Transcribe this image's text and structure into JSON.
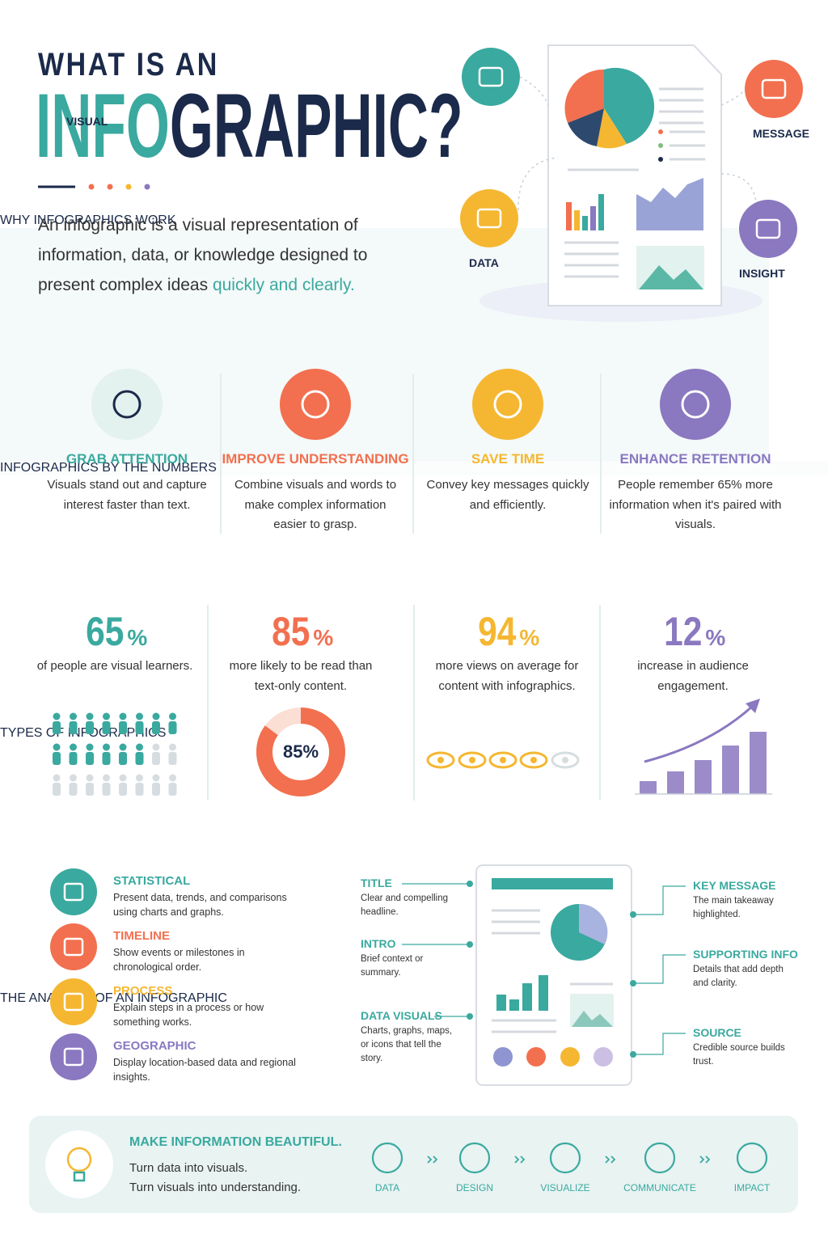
{
  "header": {
    "title_line1": "WHAT IS AN",
    "title_info": "INFO",
    "title_rest": "GRAPHIC?",
    "description": "An infographic is a visual representation of information, data, or knowledge designed to present complex ideas ",
    "description_highlight": "quickly and clearly."
  },
  "hero": {
    "labels": [
      "VISUAL",
      "MESSAGE",
      "DATA",
      "INSIGHT"
    ]
  },
  "why": {
    "title": "WHY INFOGRAPHICS WORK",
    "items": [
      {
        "heading": "GRAB ATTENTION",
        "text": "Visuals stand out and capture interest faster than text."
      },
      {
        "heading": "IMPROVE UNDERSTANDING",
        "text": "Combine visuals and words to make complex information easier to grasp."
      },
      {
        "heading": "SAVE TIME",
        "text": "Convey key messages quickly and efficiently."
      },
      {
        "heading": "ENHANCE RETENTION",
        "text": "People remember 65% more information when it's paired with visuals."
      }
    ]
  },
  "numbers": {
    "title": "INFOGRAPHICS BY THE NUMBERS",
    "stats": [
      {
        "value": 65,
        "unit": "%",
        "text": "of people are visual learners."
      },
      {
        "value": 85,
        "unit": "%",
        "text": "more likely to be read than text-only content."
      },
      {
        "value": 94,
        "unit": "%",
        "text": "more views on average for content with infographics."
      },
      {
        "value": 12,
        "unit": "%",
        "text": "increase in audience engagement."
      }
    ],
    "donut_label": "85%"
  },
  "types": {
    "title": "TYPES OF INFOGRAPHICS",
    "items": [
      {
        "heading": "STATISTICAL",
        "text": "Present data, trends, and comparisons using charts and graphs."
      },
      {
        "heading": "TIMELINE",
        "text": "Show events or milestones in chronological order."
      },
      {
        "heading": "PROCESS",
        "text": "Explain steps in a process or how something works."
      },
      {
        "heading": "GEOGRAPHIC",
        "text": "Display location-based data and regional insights."
      }
    ]
  },
  "anatomy": {
    "title": "THE ANATOMY OF AN INFOGRAPHIC",
    "left": [
      {
        "heading": "TITLE",
        "text": "Clear and compelling headline."
      },
      {
        "heading": "INTRO",
        "text": "Brief context or summary."
      },
      {
        "heading": "DATA VISUALS",
        "text": "Charts, graphs, maps, or icons that tell the story."
      }
    ],
    "right": [
      {
        "heading": "KEY MESSAGE",
        "text": "The main takeaway highlighted."
      },
      {
        "heading": "SUPPORTING INFO",
        "text": "Details that add depth and clarity."
      },
      {
        "heading": "SOURCE",
        "text": "Credible source builds trust."
      }
    ]
  },
  "footer": {
    "heading": "MAKE INFORMATION BEAUTIFUL.",
    "lines": [
      "Turn data into visuals.",
      "Turn visuals into understanding."
    ],
    "steps": [
      "DATA",
      "DESIGN",
      "VISUALIZE",
      "COMMUNICATE",
      "IMPACT"
    ]
  }
}
